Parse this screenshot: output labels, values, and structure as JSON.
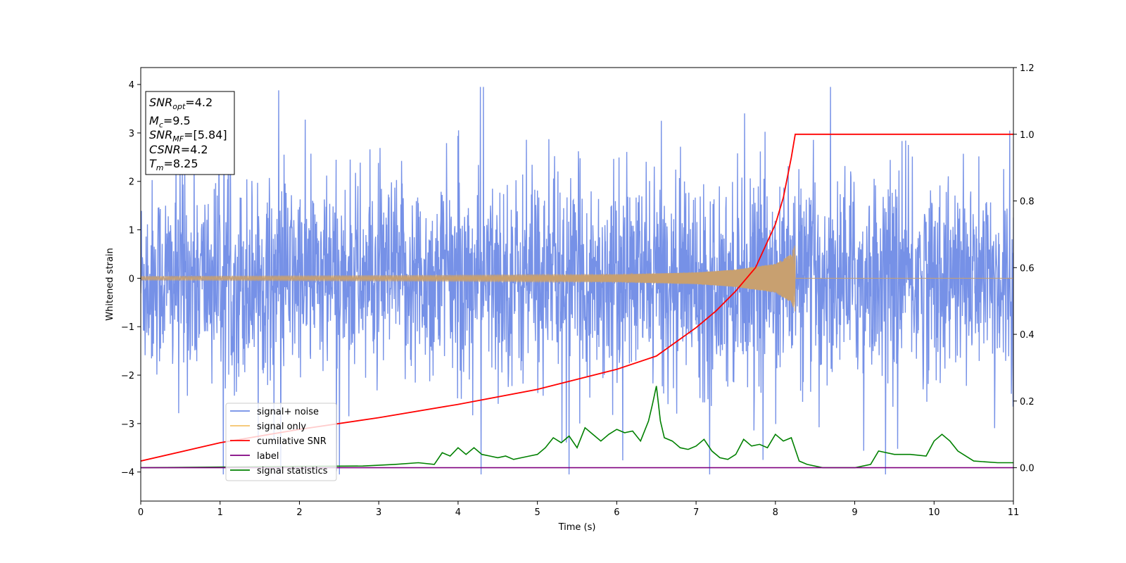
{
  "chart_data": {
    "type": "line",
    "xlabel": "Time (s)",
    "ylabel": "Whitened strain",
    "xlim": [
      0,
      11
    ],
    "ylim_left": [
      -4.6,
      4.35
    ],
    "ylim_right": [
      -0.1,
      1.2
    ],
    "x_ticks": [
      "0",
      "1",
      "2",
      "3",
      "4",
      "5",
      "6",
      "7",
      "8",
      "9",
      "10",
      "11"
    ],
    "y_ticks_left": [
      "4",
      "3",
      "2",
      "1",
      "0",
      "−1",
      "−2",
      "−3",
      "−4"
    ],
    "y_ticks_right": [
      "1.2",
      "1.0",
      "0.8",
      "0.6",
      "0.4",
      "0.2",
      "0.0"
    ],
    "info_box": {
      "snr_opt": {
        "name": "SNR",
        "sub": "opt",
        "value": "=4.2"
      },
      "mc": {
        "name": "M",
        "sub": "c",
        "value": "=9.5"
      },
      "snr_mf": {
        "name": "SNR",
        "sub": "MF",
        "value": "=[5.84]"
      },
      "csnr": {
        "name": "CSNR",
        "value": "=4.2"
      },
      "tm": {
        "name": "T",
        "sub": "m",
        "value": "=8.25"
      }
    },
    "legend": {
      "placement": "lower-left",
      "entries": [
        {
          "label": "signal+ noise",
          "color": "#6f8be6"
        },
        {
          "label": "signal only",
          "color": "#f5c36a"
        },
        {
          "label": "cumilative SNR",
          "color": "#ff0000"
        },
        {
          "label": "label",
          "color": "#800080"
        },
        {
          "label": "signal statistics",
          "color": "#008000"
        }
      ]
    },
    "series": [
      {
        "name": "signal+ noise",
        "axis": "left",
        "color": "#6f8be6",
        "description_stats": {
          "typical_range": [
            -2.2,
            2.2
          ],
          "max_peak": 3.95,
          "min_peak": -4.05
        }
      },
      {
        "name": "signal only",
        "axis": "left",
        "color": "#c8a070",
        "chirp_end_time": 8.25,
        "envelope": {
          "x": [
            0,
            2,
            4,
            6,
            7,
            7.5,
            8.0,
            8.2,
            8.25
          ],
          "amp": [
            0.04,
            0.05,
            0.06,
            0.08,
            0.12,
            0.18,
            0.3,
            0.5,
            0.72
          ]
        }
      },
      {
        "name": "cumilative SNR",
        "axis": "right",
        "color": "#ff0000",
        "x": [
          0,
          1,
          2,
          3,
          4,
          5,
          5.5,
          6,
          6.5,
          7,
          7.25,
          7.5,
          7.75,
          8.0,
          8.1,
          8.2,
          8.25,
          11
        ],
        "y": [
          0.02,
          0.075,
          0.115,
          0.15,
          0.19,
          0.235,
          0.265,
          0.295,
          0.335,
          0.42,
          0.47,
          0.53,
          0.6,
          0.73,
          0.81,
          0.93,
          1.0,
          1.0
        ]
      },
      {
        "name": "label",
        "axis": "right",
        "color": "#800080",
        "x": [
          0,
          11
        ],
        "y": [
          0.0,
          0.0
        ]
      },
      {
        "name": "signal statistics",
        "axis": "right",
        "color": "#008000",
        "x": [
          0,
          1,
          2,
          2.8,
          3.2,
          3.5,
          3.7,
          3.8,
          3.9,
          4.0,
          4.1,
          4.2,
          4.3,
          4.4,
          4.5,
          4.6,
          4.7,
          4.8,
          4.9,
          5.0,
          5.1,
          5.2,
          5.3,
          5.4,
          5.5,
          5.6,
          5.7,
          5.8,
          5.9,
          6.0,
          6.1,
          6.2,
          6.3,
          6.4,
          6.45,
          6.5,
          6.55,
          6.6,
          6.7,
          6.8,
          6.9,
          7.0,
          7.1,
          7.2,
          7.3,
          7.4,
          7.5,
          7.6,
          7.7,
          7.8,
          7.9,
          8.0,
          8.1,
          8.2,
          8.3,
          8.4,
          8.6,
          9.0,
          9.2,
          9.3,
          9.5,
          9.7,
          9.9,
          10.0,
          10.1,
          10.2,
          10.3,
          10.5,
          10.8,
          11.0
        ],
        "y": [
          0.0,
          0.002,
          0.004,
          0.005,
          0.01,
          0.015,
          0.01,
          0.045,
          0.035,
          0.06,
          0.04,
          0.06,
          0.04,
          0.035,
          0.03,
          0.035,
          0.025,
          0.03,
          0.035,
          0.04,
          0.06,
          0.09,
          0.075,
          0.095,
          0.06,
          0.12,
          0.1,
          0.08,
          0.1,
          0.115,
          0.105,
          0.11,
          0.08,
          0.14,
          0.19,
          0.245,
          0.14,
          0.09,
          0.08,
          0.06,
          0.055,
          0.065,
          0.085,
          0.05,
          0.03,
          0.025,
          0.04,
          0.085,
          0.065,
          0.07,
          0.06,
          0.1,
          0.08,
          0.09,
          0.02,
          0.01,
          0.0,
          0.0,
          0.01,
          0.05,
          0.04,
          0.04,
          0.035,
          0.08,
          0.1,
          0.08,
          0.05,
          0.02,
          0.015,
          0.015
        ]
      }
    ]
  }
}
